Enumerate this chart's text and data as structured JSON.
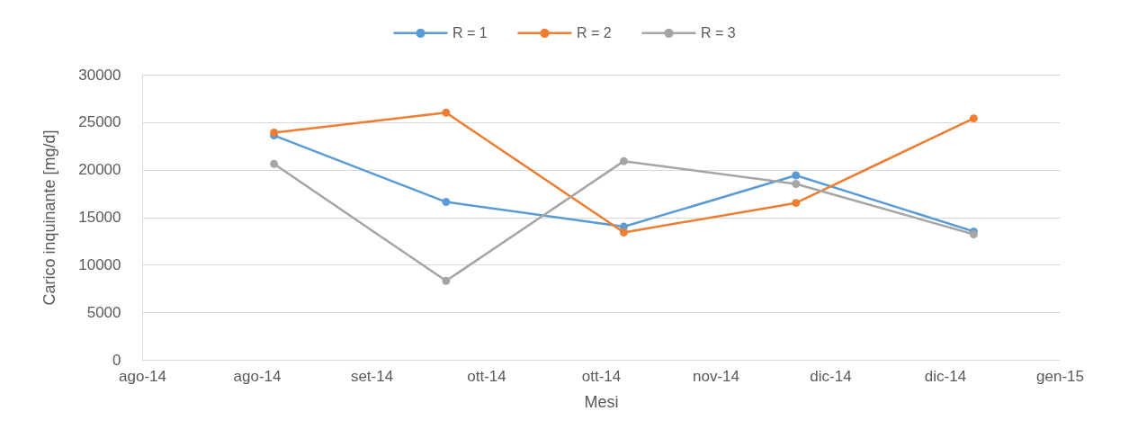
{
  "chart_data": {
    "type": "line",
    "xlabel": "Mesi",
    "ylabel": "Carico inquinante [mg/d]",
    "x": [
      "2014-08-29",
      "2014-09-28",
      "2014-10-29",
      "2014-11-28",
      "2014-12-29"
    ],
    "series": [
      {
        "name": "R = 1",
        "color": "#5b9bd5",
        "values": [
          23600,
          16600,
          14000,
          19400,
          13500
        ]
      },
      {
        "name": "R = 2",
        "color": "#ed7d31",
        "values": [
          23900,
          26000,
          13400,
          16500,
          25400
        ]
      },
      {
        "name": "R = 3",
        "color": "#a5a5a5",
        "values": [
          20600,
          8300,
          20900,
          18500,
          13200
        ]
      }
    ],
    "xlim": [
      "2014-08-06",
      "2015-01-13"
    ],
    "xticks": [
      {
        "value": "2014-08-06",
        "label": "ago-14"
      },
      {
        "value": "2014-08-26",
        "label": "ago-14"
      },
      {
        "value": "2014-09-15",
        "label": "set-14"
      },
      {
        "value": "2014-10-05",
        "label": "ott-14"
      },
      {
        "value": "2014-10-25",
        "label": "ott-14"
      },
      {
        "value": "2014-11-14",
        "label": "nov-14"
      },
      {
        "value": "2014-12-04",
        "label": "dic-14"
      },
      {
        "value": "2014-12-24",
        "label": "dic-14"
      },
      {
        "value": "2015-01-13",
        "label": "gen-15"
      }
    ],
    "ylim": [
      0,
      30000
    ],
    "yticks": [
      0,
      5000,
      10000,
      15000,
      20000,
      25000,
      30000
    ],
    "grid": "y",
    "legend": "top",
    "marker": "circle",
    "line_style": "solid"
  }
}
